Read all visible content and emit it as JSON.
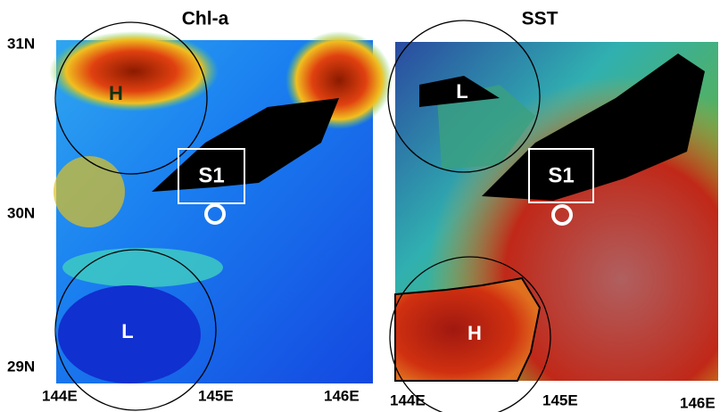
{
  "panels": [
    {
      "title": "Chl-a",
      "high": "H",
      "low": "L",
      "station": "S1",
      "lon_labels": [
        "144E",
        "145E",
        "146E"
      ]
    },
    {
      "title": "SST",
      "high": "H",
      "low": "L",
      "station": "S1",
      "lon_labels": [
        "144E",
        "145E",
        "146E"
      ]
    }
  ],
  "lat_labels": [
    "31N",
    "30N",
    "29N"
  ]
}
